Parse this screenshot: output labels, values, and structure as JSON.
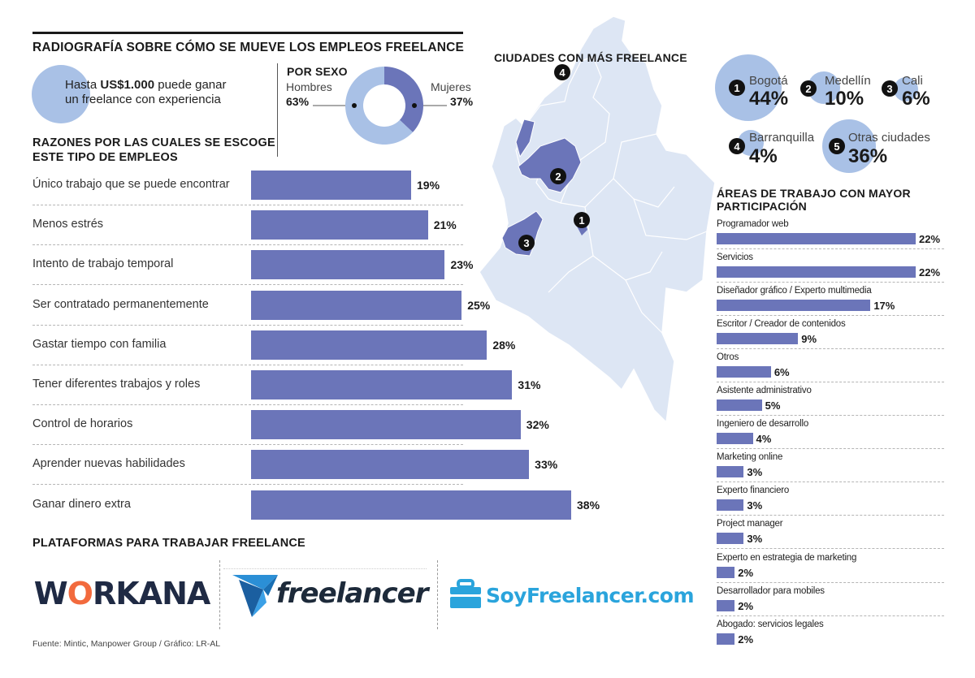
{
  "title": "RADIOGRAFÍA SOBRE CÓMO SE MUEVE LOS EMPLEOS FREELANCE",
  "earning": {
    "prefix": "Hasta ",
    "amount": "US$1.000",
    "line1_suffix": " puede ganar",
    "line2": "un freelance con experiencia"
  },
  "sex": {
    "title": "POR SEXO",
    "men_label": "Hombres",
    "men_pct": "63%",
    "women_label": "Mujeres",
    "women_pct": "37%"
  },
  "reasons_title_1": "RAZONES POR LAS CUALES SE ESCOGE",
  "reasons_title_2": "ESTE TIPO DE EMPLEOS",
  "cities_title": "CIUDADES CON MÁS FREELANCE",
  "cities": [
    {
      "num": "1",
      "name": "Bogotá",
      "pct": "44%",
      "value": 44
    },
    {
      "num": "2",
      "name": "Medellín",
      "pct": "10%",
      "value": 10
    },
    {
      "num": "3",
      "name": "Cali",
      "pct": "6%",
      "value": 6
    },
    {
      "num": "4",
      "name": "Barranquilla",
      "pct": "4%",
      "value": 4
    },
    {
      "num": "5",
      "name": "Otras ciudades",
      "pct": "36%",
      "value": 36
    }
  ],
  "areas_title_1": "ÁREAS DE TRABAJO CON MAYOR",
  "areas_title_2": "PARTICIPACIÓN",
  "platforms_title": "PLATAFORMAS PARA TRABAJAR FREELANCE",
  "platforms": {
    "workana_a": "W",
    "workana_o": "O",
    "workana_b": "RKANA",
    "freelancer": "freelancer",
    "soy": "SoyFreelancer.com"
  },
  "source": "Fuente: Mintic, Manpower Group / Gráfico: LR-AL",
  "colors": {
    "bar": "#6b75b9",
    "bubble": "#a9c1e6",
    "map": "#dde6f4",
    "highlight": "#6b75b9"
  },
  "chart_data": [
    {
      "type": "bar",
      "title": "RAZONES POR LAS CUALES SE ESCOGE ESTE TIPO DE EMPLEOS",
      "categories": [
        "Único trabajo que se puede encontrar",
        "Menos estrés",
        "Intento de trabajo temporal",
        "Ser contratado permanentemente",
        "Gastar tiempo con familia",
        "Tener diferentes trabajos y roles",
        "Control de horarios",
        "Aprender nuevas habilidades",
        "Ganar dinero extra"
      ],
      "values": [
        19,
        21,
        23,
        25,
        28,
        31,
        32,
        33,
        38
      ],
      "labels": [
        "19%",
        "21%",
        "23%",
        "25%",
        "28%",
        "31%",
        "32%",
        "33%",
        "38%"
      ]
    },
    {
      "type": "bar",
      "title": "ÁREAS DE TRABAJO CON MAYOR PARTICIPACIÓN",
      "categories": [
        "Programador web",
        "Servicios",
        "Diseñador gráfico / Experto multimedia",
        "Escritor / Creador de contenidos",
        "Otros",
        "Asistente administrativo",
        "Ingeniero de desarrollo",
        "Marketing online",
        "Experto financiero",
        "Project manager",
        "Experto en estrategia de marketing",
        "Desarrollador para mobiles",
        "Abogado: servicios legales"
      ],
      "values": [
        22,
        22,
        17,
        9,
        6,
        5,
        4,
        3,
        3,
        3,
        2,
        2,
        2
      ],
      "labels": [
        "22%",
        "22%",
        "17%",
        "9%",
        "6%",
        "5%",
        "4%",
        "3%",
        "3%",
        "3%",
        "2%",
        "2%",
        "2%"
      ]
    },
    {
      "type": "pie",
      "title": "POR SEXO",
      "categories": [
        "Hombres",
        "Mujeres"
      ],
      "values": [
        63,
        37
      ]
    }
  ]
}
